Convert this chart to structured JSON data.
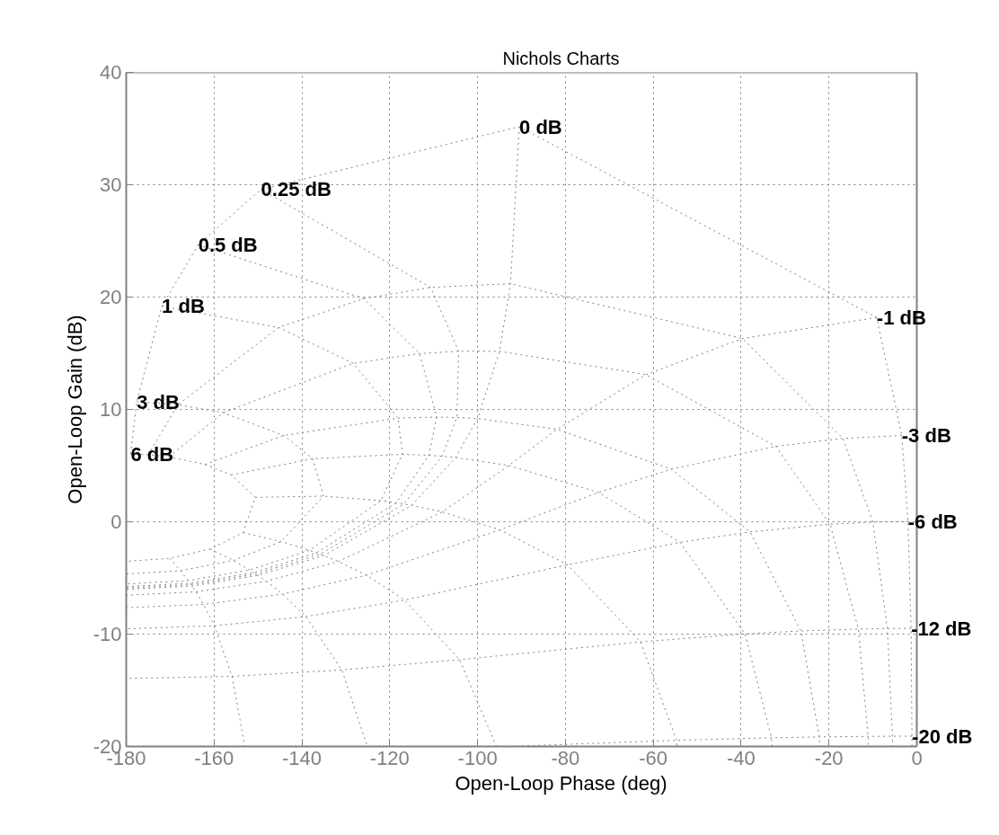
{
  "chart_data": {
    "type": "line",
    "title": "Nichols Charts",
    "xlabel": "Open-Loop Phase (deg)",
    "ylabel": "Open-Loop Gain (dB)",
    "xlim": [
      -180,
      0
    ],
    "ylim": [
      -20,
      40
    ],
    "xticks": [
      -180,
      -160,
      -140,
      -120,
      -100,
      -80,
      -60,
      -40,
      -20,
      0
    ],
    "yticks": [
      -20,
      -10,
      0,
      10,
      20,
      30,
      40
    ],
    "grid": true,
    "line_style": "dotted",
    "series": [
      {
        "color": "#808080",
        "x": [
          -179.0,
          -175.0,
          -170.25,
          -162.05,
          -156.1,
          -150.6,
          -153.4,
          -160.9,
          -170.1,
          -180
        ],
        "values": [
          6.04,
          5.97,
          5.78,
          5.1,
          4.17,
          2.17,
          -0.97,
          -2.43,
          -3.26,
          -3.52
        ]
      },
      {
        "color": "#808080",
        "x": [
          -177.6,
          -168.2,
          -157.9,
          -144.1,
          -137.55,
          -135.1,
          -144.7,
          -155.6,
          -167.6,
          -180
        ],
        "values": [
          10.68,
          10.42,
          9.71,
          7.68,
          5.61,
          2.28,
          -1.76,
          -3.44,
          -4.36,
          -4.65
        ]
      },
      {
        "color": "#808080",
        "x": [
          -171.9,
          -145.3,
          -128.3,
          -118.1,
          -117.1,
          -122.0,
          -138.3,
          -151.9,
          -165.9,
          -180
        ],
        "values": [
          19.18,
          17.29,
          14.1,
          9.23,
          6.01,
          1.88,
          -2.54,
          -4.29,
          -5.24,
          -5.53
        ]
      },
      {
        "color": "#808080",
        "x": [
          -163.6,
          -125.9,
          -113.2,
          -109.3,
          -111.1,
          -118.5,
          -136.7,
          -151.0,
          -165.4,
          -180
        ],
        "values": [
          24.66,
          19.86,
          14.97,
          9.32,
          5.92,
          1.69,
          -2.77,
          -4.53,
          -5.47,
          -5.77
        ]
      },
      {
        "color": "#808080",
        "x": [
          -149.3,
          -110.7,
          -104.3,
          -104.7,
          -108.1,
          -116.8,
          -135.8,
          -150.5,
          -165.2,
          -180
        ],
        "values": [
          29.58,
          20.86,
          15.18,
          9.28,
          5.83,
          1.58,
          -2.89,
          -4.65,
          -5.6,
          -5.9
        ]
      },
      {
        "color": "#808080",
        "x": [
          -90.5,
          -92.5,
          -95,
          -100,
          -105,
          -115,
          -135,
          -150,
          -165,
          -180
        ],
        "values": [
          35.16,
          21.19,
          15.17,
          9.19,
          5.72,
          1.46,
          -3.01,
          -4.77,
          -5.72,
          -6.02
        ]
      },
      {
        "color": "#808080",
        "x": [
          -9.13,
          -39.7,
          -61.7,
          -81.9,
          -92.9,
          -108.0,
          -131.7,
          -148.1,
          -164.1,
          -180
        ],
        "values": [
          18.18,
          16.31,
          13.1,
          8.23,
          5.01,
          0.88,
          -3.54,
          -5.29,
          -6.24,
          -6.54
        ]
      },
      {
        "color": "#808080",
        "x": [
          -3.42,
          -16.8,
          -32.1,
          -55.9,
          -72.5,
          -94.9,
          -125.3,
          -144.4,
          -162.4,
          -180
        ],
        "values": [
          7.68,
          7.42,
          6.71,
          4.68,
          2.61,
          -0.72,
          -4.76,
          -6.44,
          -7.36,
          -7.65
        ]
      },
      {
        "color": "#808080",
        "x": [
          -2.0,
          -10.0,
          -19.75,
          -37.95,
          -53.9,
          -79.5,
          -116.6,
          -139.1,
          -159.9,
          -180
        ],
        "values": [
          0.04,
          -0.03,
          -0.22,
          -0.9,
          -1.83,
          -3.83,
          -6.97,
          -8.44,
          -9.26,
          -9.53
        ]
      },
      {
        "color": "#808080",
        "x": [
          -1.3,
          -6.7,
          -13.3,
          -26.4,
          -39.1,
          -62.9,
          -104.1,
          -130.9,
          -155.9,
          -180
        ],
        "values": [
          -9.49,
          -9.5,
          -9.55,
          -9.72,
          -9.98,
          -10.69,
          -12.27,
          -13.19,
          -13.76,
          -13.95
        ]
      },
      {
        "color": "#808080",
        "x": [
          -1.1,
          -5.55,
          -11.1,
          -22.2,
          -33.1,
          -54.7,
          -92.9
        ],
        "values": [
          -19.08,
          -19.09,
          -19.1,
          -19.15,
          -19.23,
          -19.45,
          -20
        ]
      },
      {
        "color": "#808080",
        "x": [
          -179.0,
          -177.6,
          -171.9,
          -163.6,
          -149.3,
          -90.5,
          -9.13,
          -3.42,
          -2.0,
          -1.3,
          -1.1,
          -1.1
        ],
        "values": [
          6.04,
          10.68,
          19.18,
          24.66,
          29.58,
          35.16,
          18.18,
          7.68,
          0.04,
          -9.49,
          -19.08,
          -20
        ]
      },
      {
        "color": "#808080",
        "x": [
          -175.0,
          -168.2,
          -145.3,
          -125.9,
          -110.7,
          -92.5,
          -39.7,
          -16.8,
          -10.0,
          -6.7,
          -5.55,
          -5.5
        ],
        "values": [
          5.97,
          10.42,
          17.29,
          19.86,
          20.86,
          21.19,
          16.31,
          7.42,
          -0.03,
          -9.5,
          -19.09,
          -20
        ]
      },
      {
        "color": "#808080",
        "x": [
          -170.25,
          -157.9,
          -128.3,
          -113.2,
          -104.3,
          -95,
          -61.7,
          -32.1,
          -19.75,
          -13.3,
          -11.1,
          -11.0
        ],
        "values": [
          5.78,
          9.71,
          14.1,
          14.97,
          15.18,
          15.17,
          13.1,
          6.71,
          -0.22,
          -9.55,
          -19.1,
          -20
        ]
      },
      {
        "color": "#808080",
        "x": [
          -162.05,
          -144.1,
          -118.1,
          -109.3,
          -104.7,
          -100,
          -81.9,
          -55.9,
          -37.95,
          -26.4,
          -22.2,
          -22.1
        ],
        "values": [
          5.1,
          7.68,
          9.23,
          9.32,
          9.28,
          9.19,
          8.23,
          4.68,
          -0.9,
          -9.72,
          -19.15,
          -20
        ]
      },
      {
        "color": "#808080",
        "x": [
          -156.1,
          -137.55,
          -117.1,
          -111.1,
          -108.1,
          -105,
          -92.9,
          -72.5,
          -53.9,
          -39.1,
          -33.1,
          -33.0
        ],
        "values": [
          4.17,
          5.61,
          6.01,
          5.92,
          5.83,
          5.72,
          5.01,
          2.61,
          -1.83,
          -9.98,
          -19.23,
          -20
        ]
      },
      {
        "color": "#808080",
        "x": [
          -150.6,
          -135.1,
          -122.0,
          -118.5,
          -116.8,
          -115,
          -108.0,
          -94.9,
          -79.5,
          -62.9,
          -54.7,
          -54.6
        ],
        "values": [
          2.17,
          2.28,
          1.88,
          1.69,
          1.58,
          1.46,
          0.88,
          -0.72,
          -3.83,
          -10.69,
          -19.45,
          -20
        ]
      },
      {
        "color": "#808080",
        "x": [
          -153.4,
          -144.7,
          -138.3,
          -136.7,
          -135.8,
          -135,
          -131.7,
          -125.3,
          -116.6,
          -104.1,
          -95.7
        ],
        "values": [
          -0.97,
          -1.76,
          -2.54,
          -2.77,
          -2.89,
          -3.01,
          -3.54,
          -4.76,
          -6.97,
          -12.27,
          -20
        ]
      },
      {
        "color": "#808080",
        "x": [
          -160.9,
          -155.6,
          -151.9,
          -151.0,
          -150.5,
          -150,
          -148.1,
          -144.4,
          -139.1,
          -130.9,
          -125.1
        ],
        "values": [
          -2.43,
          -3.44,
          -4.29,
          -4.53,
          -4.65,
          -4.77,
          -5.29,
          -6.44,
          -8.44,
          -13.19,
          -20
        ]
      },
      {
        "color": "#808080",
        "x": [
          -170.1,
          -167.6,
          -165.9,
          -165.4,
          -165.2,
          -165,
          -164.1,
          -162.4,
          -159.9,
          -155.9,
          -153.0
        ],
        "values": [
          -3.26,
          -4.36,
          -5.24,
          -5.47,
          -5.6,
          -5.72,
          -6.24,
          -7.36,
          -9.26,
          -13.76,
          -20
        ]
      }
    ],
    "annotations": [
      {
        "text": "6 dB",
        "x": -179.0,
        "y": 6.04
      },
      {
        "text": "3 dB",
        "x": -177.6,
        "y": 10.68
      },
      {
        "text": "1 dB",
        "x": -171.9,
        "y": 19.18
      },
      {
        "text": "0.5 dB",
        "x": -163.6,
        "y": 24.66
      },
      {
        "text": "0.25 dB",
        "x": -149.3,
        "y": 29.58
      },
      {
        "text": "0 dB",
        "x": -90.5,
        "y": 35.16
      },
      {
        "text": "-1 dB",
        "x": -9.13,
        "y": 18.18
      },
      {
        "text": "-3 dB",
        "x": -3.42,
        "y": 7.68
      },
      {
        "text": "-6 dB",
        "x": -2.0,
        "y": 0.04
      },
      {
        "text": "-12 dB",
        "x": -1.3,
        "y": -9.49
      },
      {
        "text": "-20 dB",
        "x": -1.1,
        "y": -19.08
      }
    ]
  }
}
